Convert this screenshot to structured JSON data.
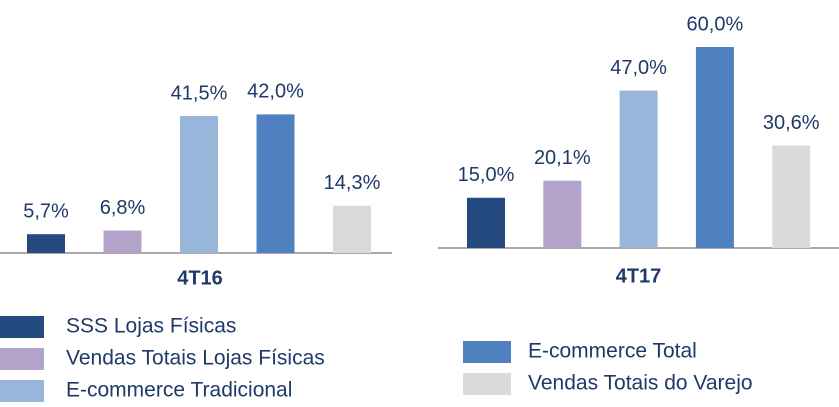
{
  "chart_data": {
    "type": "bar",
    "categories": [
      "4T16",
      "4T17"
    ],
    "series": [
      {
        "name": "SSS Lojas Físicas",
        "color": "#254a7f",
        "values": [
          5.7,
          15.0
        ],
        "value_labels": [
          "5,7%",
          "15,0%"
        ]
      },
      {
        "name": "Vendas Totais Lojas Físicas",
        "color": "#b3a2c9",
        "values": [
          6.8,
          20.1
        ],
        "value_labels": [
          "6,8%",
          "20,1%"
        ]
      },
      {
        "name": "E-commerce Tradicional",
        "color": "#98b5da",
        "values": [
          41.5,
          47.0
        ],
        "value_labels": [
          "41,5%",
          "47,0%"
        ]
      },
      {
        "name": "E-commerce Total",
        "color": "#4f81c0",
        "values": [
          42.0,
          60.0
        ],
        "value_labels": [
          "42,0%",
          "60,0%"
        ]
      },
      {
        "name": "Vendas Totais do Varejo",
        "color": "#dadada",
        "values": [
          14.3,
          30.6
        ],
        "value_labels": [
          "14,3%",
          "30,6%"
        ]
      }
    ]
  }
}
